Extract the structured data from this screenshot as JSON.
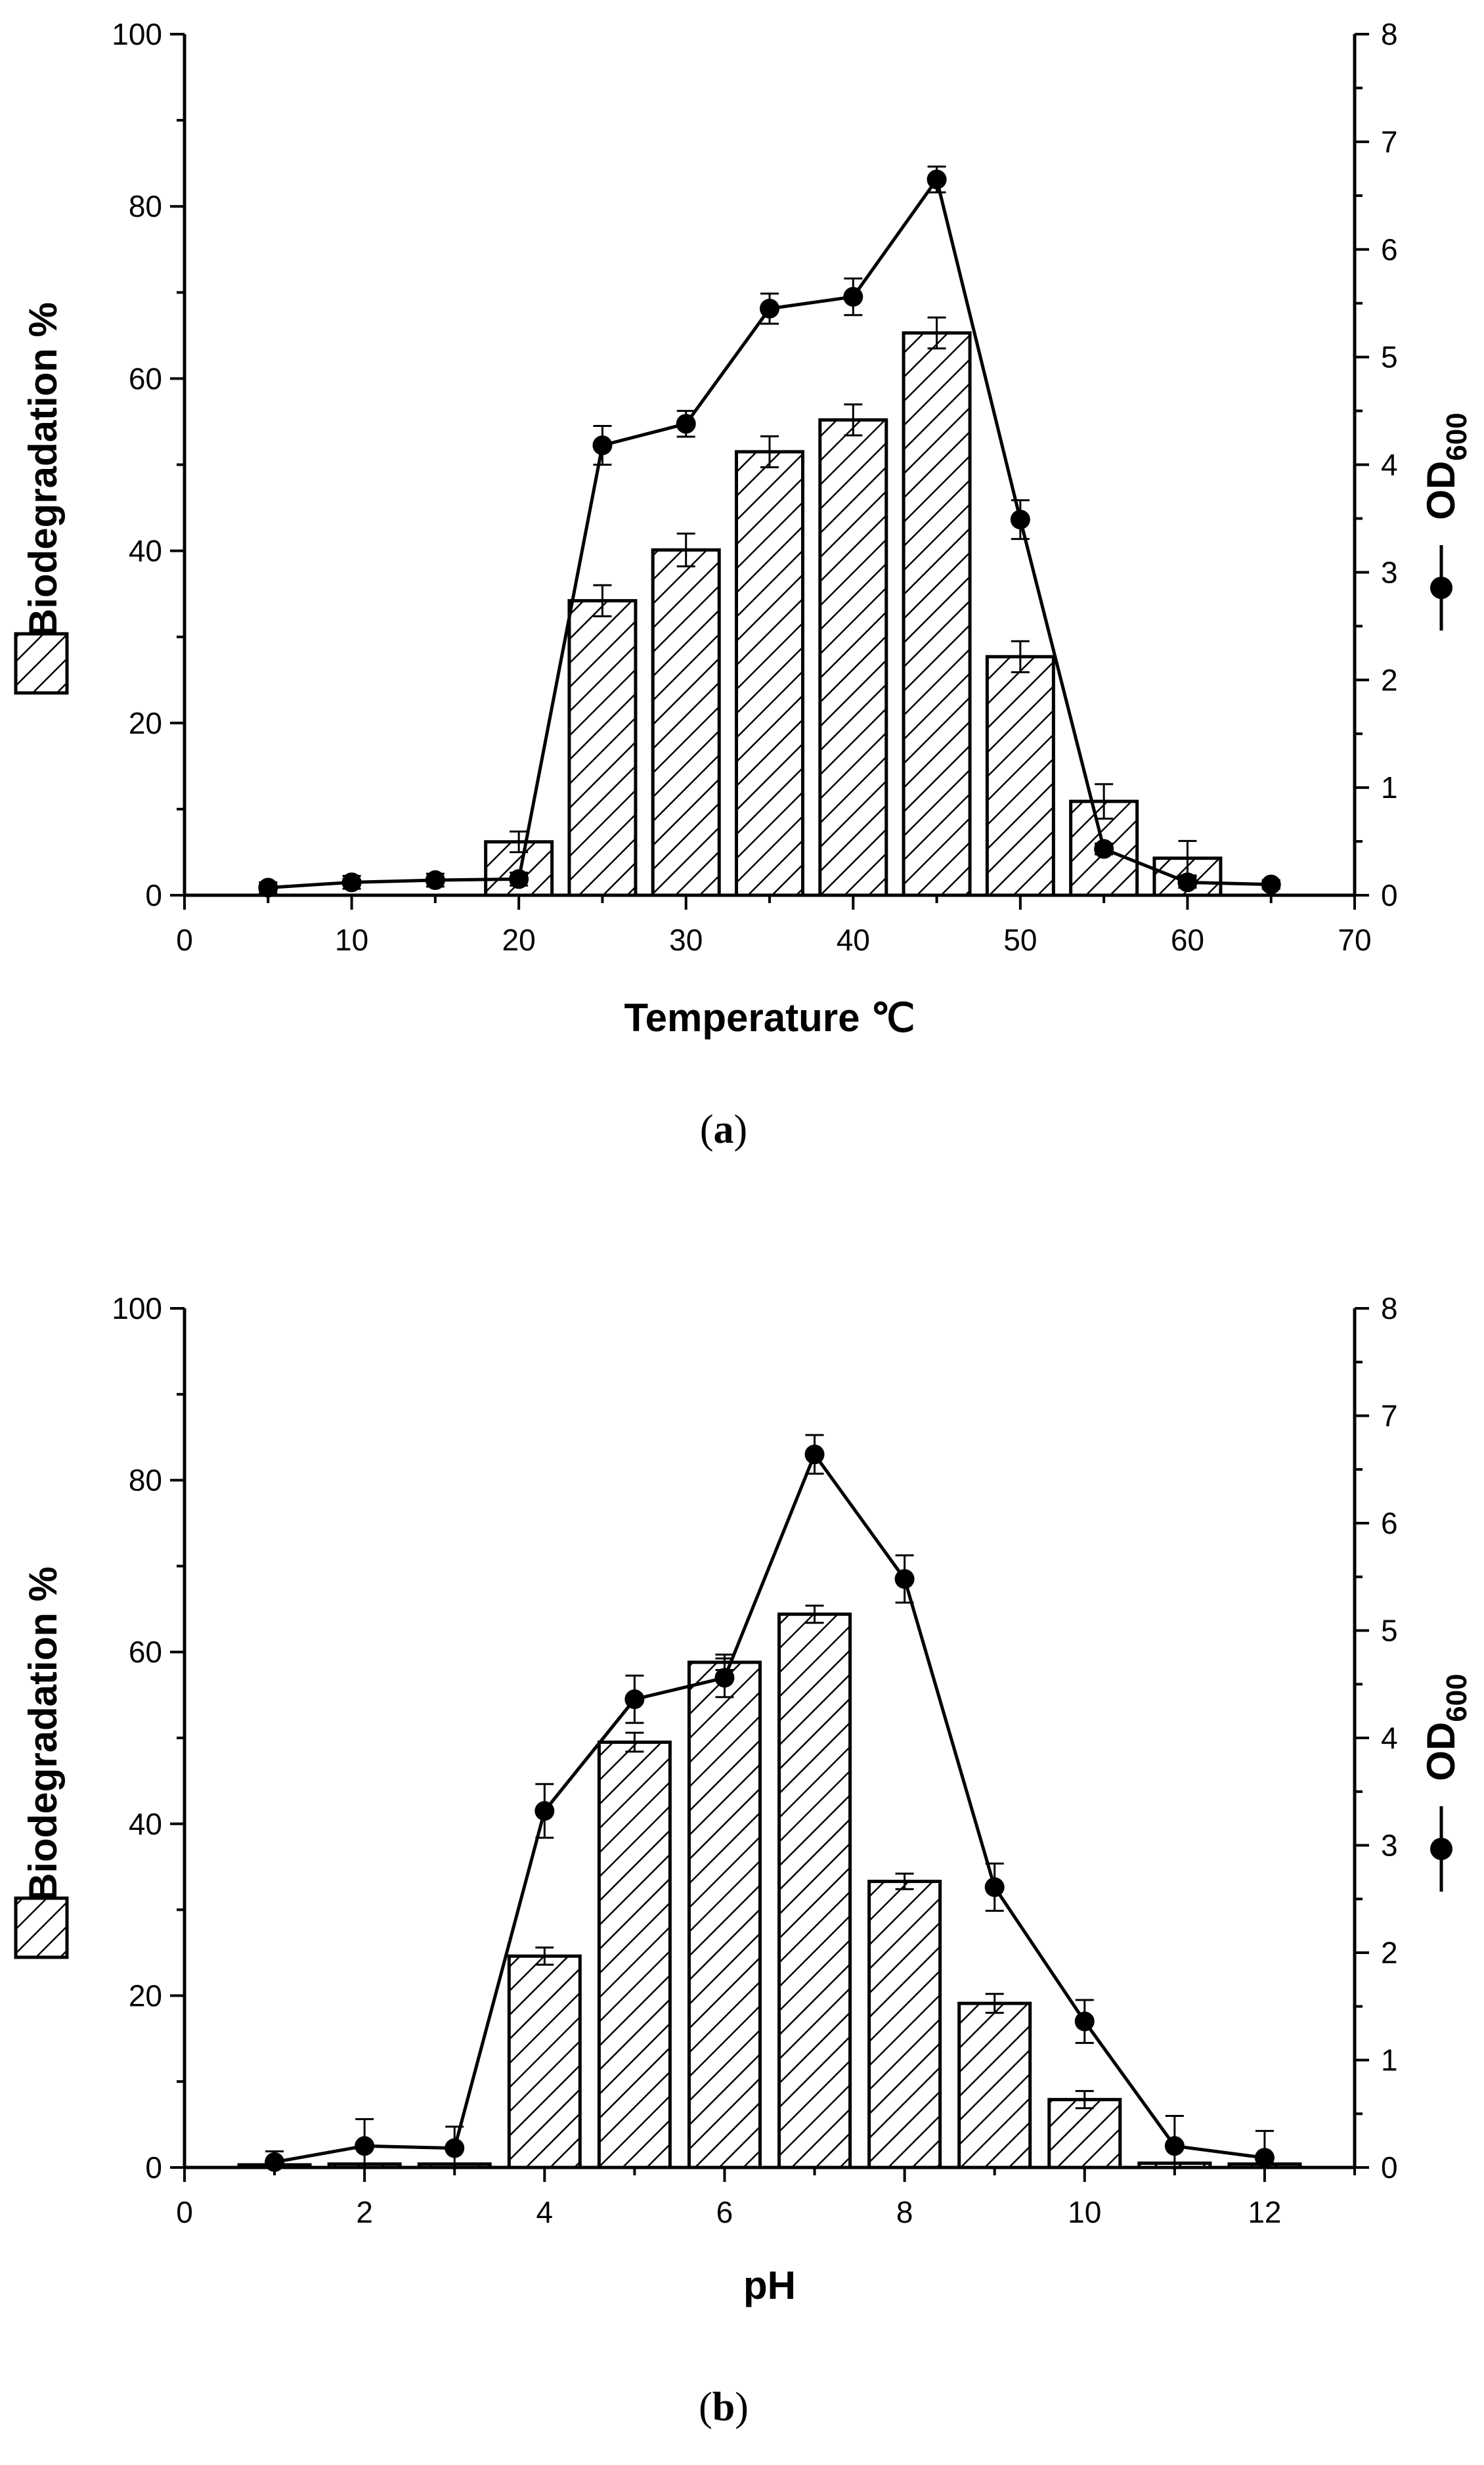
{
  "chart_data": [
    {
      "type": "bar",
      "panel_label": "a",
      "xlabel": "Temperature ℃",
      "ylabel": "Biodegradation %",
      "y2label": "OD",
      "y2label_sub": "600",
      "xlim": [
        0,
        70
      ],
      "ylim": [
        0,
        100
      ],
      "y2lim": [
        0,
        8
      ],
      "xticks": [
        0,
        10,
        20,
        30,
        40,
        50,
        60,
        70
      ],
      "yticks": [
        0,
        20,
        40,
        60,
        80,
        100
      ],
      "y2ticks": [
        0,
        1,
        2,
        3,
        4,
        5,
        6,
        7,
        8
      ],
      "series": [
        {
          "name": "Biodegradation %",
          "kind": "bar",
          "axis": "left",
          "hatch": "diagonal",
          "x": [
            20,
            25,
            30,
            35,
            40,
            45,
            50,
            55,
            60
          ],
          "values": [
            6.2,
            34.2,
            40.1,
            51.5,
            55.2,
            65.3,
            27.7,
            10.9,
            4.3
          ],
          "errors": [
            1.2,
            1.8,
            1.9,
            1.8,
            1.8,
            1.8,
            1.8,
            2.0,
            2.0
          ]
        },
        {
          "name": "OD600",
          "kind": "line",
          "axis": "right",
          "marker": "circle",
          "x": [
            5,
            10,
            15,
            20,
            25,
            30,
            35,
            40,
            45,
            50,
            55,
            60,
            65
          ],
          "values": [
            0.07,
            0.12,
            0.14,
            0.15,
            4.18,
            4.38,
            5.45,
            5.56,
            6.65,
            3.49,
            0.43,
            0.12,
            0.1
          ],
          "errors": [
            0.05,
            0.06,
            0.06,
            0.06,
            0.18,
            0.12,
            0.14,
            0.17,
            0.12,
            0.18,
            0.05,
            0.05,
            0.04
          ]
        }
      ]
    },
    {
      "type": "bar",
      "panel_label": "b",
      "xlabel": "pH",
      "ylabel": "Biodegradation %",
      "y2label": "OD",
      "y2label_sub": "600",
      "xlim": [
        0,
        13
      ],
      "ylim": [
        0,
        100
      ],
      "y2lim": [
        0,
        8
      ],
      "xticks": [
        0,
        2,
        4,
        6,
        8,
        10,
        12
      ],
      "yticks": [
        0,
        20,
        40,
        60,
        80,
        100
      ],
      "y2ticks": [
        0,
        1,
        2,
        3,
        4,
        5,
        6,
        7,
        8
      ],
      "series": [
        {
          "name": "Biodegradation %",
          "kind": "bar",
          "axis": "left",
          "hatch": "diagonal",
          "x": [
            1,
            2,
            3,
            4,
            5,
            6,
            7,
            8,
            9,
            10,
            11,
            12
          ],
          "values": [
            0.3,
            0.4,
            0.4,
            24.6,
            49.5,
            58.8,
            64.4,
            33.3,
            19.1,
            7.9,
            0.5,
            0.4
          ],
          "errors": [
            0.1,
            0.1,
            0.1,
            1.0,
            1.1,
            0.9,
            1.0,
            0.9,
            1.1,
            1.0,
            0.1,
            0.1
          ]
        },
        {
          "name": "OD600",
          "kind": "line",
          "axis": "right",
          "marker": "circle",
          "x": [
            1,
            2,
            3,
            4,
            5,
            6,
            7,
            8,
            9,
            10,
            11,
            12
          ],
          "values": [
            0.05,
            0.2,
            0.18,
            3.32,
            4.36,
            4.56,
            6.64,
            5.48,
            2.61,
            1.36,
            0.2,
            0.09
          ],
          "errors": [
            0.1,
            0.25,
            0.2,
            0.25,
            0.22,
            0.18,
            0.18,
            0.22,
            0.22,
            0.2,
            0.28,
            0.25
          ]
        }
      ]
    }
  ]
}
